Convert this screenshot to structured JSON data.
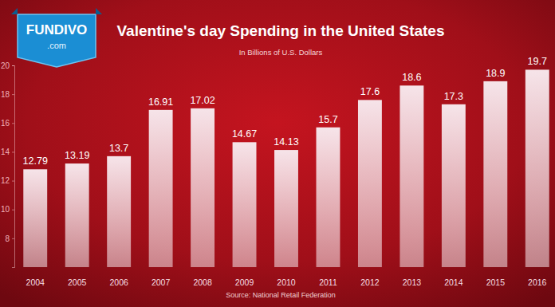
{
  "logo": {
    "name": "FUNDIVO",
    "domain": ".com"
  },
  "chart_data": {
    "type": "bar",
    "title": "Valentine's day Spending in the United States",
    "subtitle": "In Billions of U.S. Dollars",
    "annotations": [
      "Source: National Retail Federation"
    ],
    "categories": [
      "2004",
      "2005",
      "2006",
      "2007",
      "2008",
      "2009",
      "2010",
      "2011",
      "2012",
      "2013",
      "2014",
      "2015",
      "2016"
    ],
    "values": [
      12.79,
      13.19,
      13.7,
      16.91,
      17.02,
      14.67,
      14.13,
      15.7,
      17.6,
      18.6,
      17.3,
      18.9,
      19.7
    ],
    "color": "#f6e4e9",
    "ylim": [
      6,
      20
    ],
    "yticks": [
      8,
      10,
      12,
      14,
      16,
      18,
      20
    ],
    "grid": false,
    "data_labels": true
  }
}
